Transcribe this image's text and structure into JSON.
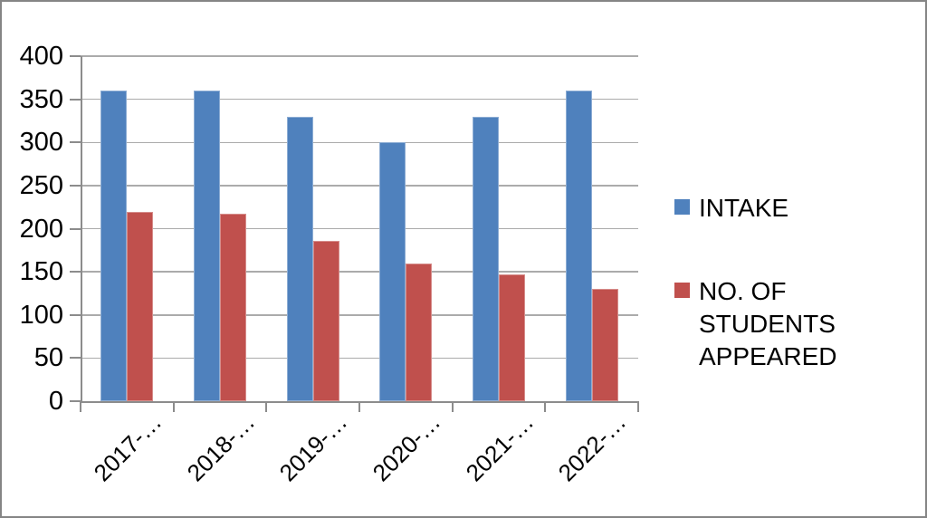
{
  "chart_data": {
    "type": "bar",
    "title": "",
    "xlabel": "",
    "ylabel": "",
    "categories": [
      "2017-…",
      "2018-…",
      "2019-…",
      "2020-…",
      "2021-…",
      "2022-…"
    ],
    "series": [
      {
        "name": "INTAKE",
        "color": "#4F81BD",
        "values": [
          360,
          360,
          330,
          300,
          330,
          360
        ]
      },
      {
        "name": "NO. OF STUDENTS APPEARED",
        "color": "#C0504D",
        "values": [
          219,
          217,
          186,
          160,
          147,
          130
        ]
      }
    ],
    "ylim": [
      0,
      400
    ],
    "ytick_step": 50,
    "grid": true,
    "legend_position": "right"
  },
  "colors": {
    "gridline": "#ababab",
    "axis": "#8c8c8c",
    "frame_border": "#858585",
    "text": "#000000"
  }
}
